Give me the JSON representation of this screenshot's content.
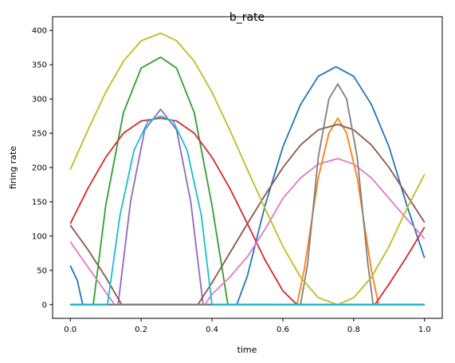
{
  "chart_data": {
    "type": "line",
    "title": "b_rate",
    "xlabel": "time",
    "ylabel": "firing rate",
    "xlim": [
      -0.05,
      1.05
    ],
    "ylim": [
      -20,
      420
    ],
    "xticks": [
      0.0,
      0.2,
      0.4,
      0.6,
      0.8,
      1.0
    ],
    "xtick_labels": [
      "0.0",
      "0.2",
      "0.4",
      "0.6",
      "0.8",
      "1.0"
    ],
    "yticks": [
      0,
      50,
      100,
      150,
      200,
      250,
      300,
      350,
      400
    ],
    "ytick_labels": [
      "0",
      "50",
      "100",
      "150",
      "200",
      "250",
      "300",
      "350",
      "400"
    ],
    "grid": false,
    "series": [
      {
        "color": "#1f77b4",
        "x": [
          0.0,
          0.02,
          0.035,
          0.47,
          0.5,
          0.55,
          0.6,
          0.65,
          0.7,
          0.75,
          0.8,
          0.85,
          0.9,
          0.95,
          1.0
        ],
        "values": [
          57,
          35,
          0,
          0,
          42,
          145,
          230,
          292,
          333,
          347,
          333,
          292,
          230,
          145,
          68
        ]
      },
      {
        "color": "#ff7f0e",
        "x": [
          0.0,
          0.64,
          0.66,
          0.7,
          0.73,
          0.755,
          0.78,
          0.81,
          0.85,
          0.87,
          1.0
        ],
        "values": [
          0,
          0,
          50,
          185,
          250,
          272,
          250,
          185,
          50,
          0,
          0
        ]
      },
      {
        "color": "#2ca02c",
        "x": [
          0.0,
          0.065,
          0.1,
          0.15,
          0.2,
          0.255,
          0.3,
          0.35,
          0.4,
          0.445,
          1.0
        ],
        "values": [
          0,
          0,
          145,
          280,
          345,
          361,
          345,
          280,
          145,
          0,
          0
        ]
      },
      {
        "color": "#d62728",
        "x": [
          0.0,
          0.05,
          0.1,
          0.15,
          0.2,
          0.255,
          0.3,
          0.35,
          0.4,
          0.45,
          0.5,
          0.55,
          0.6,
          0.64,
          0.7,
          0.8,
          0.86,
          0.9,
          0.95,
          1.0
        ],
        "values": [
          118,
          170,
          215,
          250,
          268,
          272,
          268,
          250,
          215,
          170,
          118,
          65,
          20,
          0,
          0,
          0,
          0,
          30,
          70,
          113
        ]
      },
      {
        "color": "#9467bd",
        "x": [
          0.0,
          0.135,
          0.17,
          0.21,
          0.255,
          0.3,
          0.34,
          0.375,
          1.0
        ],
        "values": [
          0,
          0,
          150,
          255,
          285,
          255,
          150,
          0,
          0
        ]
      },
      {
        "color": "#8c564b",
        "x": [
          0.0,
          0.05,
          0.1,
          0.145,
          0.2,
          0.3,
          0.36,
          0.4,
          0.45,
          0.5,
          0.55,
          0.6,
          0.65,
          0.7,
          0.755,
          0.8,
          0.85,
          0.9,
          0.95,
          1.0
        ],
        "values": [
          116,
          80,
          40,
          0,
          0,
          0,
          0,
          32,
          75,
          118,
          160,
          200,
          233,
          255,
          263,
          255,
          233,
          200,
          160,
          120
        ]
      },
      {
        "color": "#e377c2",
        "x": [
          0.0,
          0.04,
          0.1,
          0.125,
          0.2,
          0.3,
          0.38,
          0.4,
          0.45,
          0.5,
          0.55,
          0.6,
          0.65,
          0.7,
          0.755,
          0.8,
          0.85,
          0.9,
          0.95,
          1.0
        ],
        "values": [
          92,
          62,
          18,
          0,
          0,
          0,
          0,
          15,
          40,
          70,
          110,
          155,
          185,
          205,
          213,
          205,
          185,
          155,
          125,
          96
        ]
      },
      {
        "color": "#7f7f7f",
        "x": [
          0.0,
          0.65,
          0.67,
          0.7,
          0.73,
          0.755,
          0.78,
          0.81,
          0.84,
          0.855,
          1.0
        ],
        "values": [
          0,
          0,
          60,
          215,
          300,
          322,
          300,
          215,
          60,
          0,
          0
        ]
      },
      {
        "color": "#bcbd22",
        "x": [
          0.0,
          0.05,
          0.1,
          0.15,
          0.2,
          0.255,
          0.3,
          0.35,
          0.4,
          0.45,
          0.5,
          0.55,
          0.6,
          0.65,
          0.7,
          0.755,
          0.8,
          0.85,
          0.9,
          0.95,
          1.0
        ],
        "values": [
          197,
          255,
          310,
          355,
          385,
          396,
          385,
          355,
          310,
          255,
          197,
          140,
          85,
          40,
          10,
          0,
          10,
          40,
          85,
          140,
          190
        ]
      },
      {
        "color": "#17becf",
        "x": [
          0.0,
          0.105,
          0.14,
          0.18,
          0.22,
          0.255,
          0.29,
          0.33,
          0.37,
          0.4,
          1.0
        ],
        "values": [
          0,
          0,
          130,
          225,
          268,
          275,
          268,
          225,
          130,
          0,
          0
        ]
      }
    ]
  }
}
